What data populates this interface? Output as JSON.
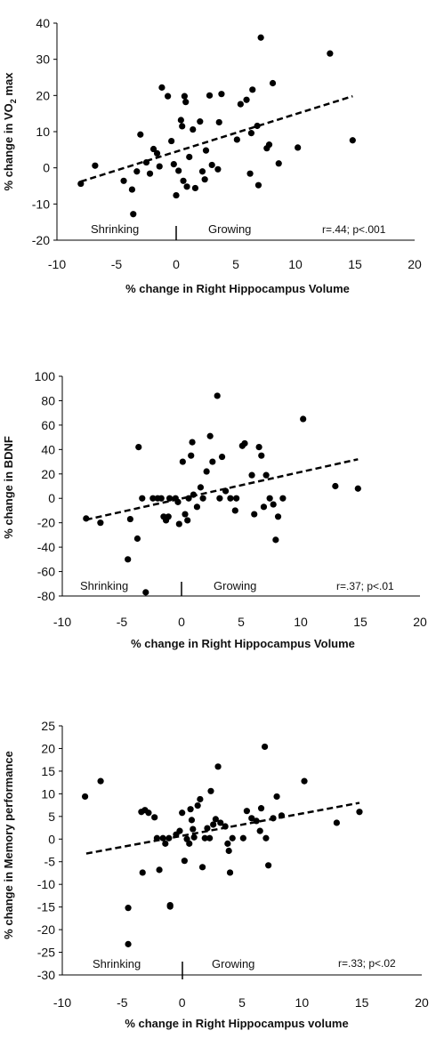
{
  "chart_data": [
    {
      "type": "scatter",
      "xlabel": "% change in Right Hippocampus Volume",
      "ylabel": "% change in VO2 max",
      "ylabel_main": "% change in VO",
      "ylabel_sub": "2",
      "ylabel_tail": " max",
      "xlim": [
        -10,
        20
      ],
      "ylim": [
        -20,
        40
      ],
      "xticks": [
        "-10",
        "-5",
        "0",
        "5",
        "10",
        "15",
        "20"
      ],
      "yticks": [
        "-20",
        "-10",
        "0",
        "10",
        "20",
        "30",
        "40"
      ],
      "annotations": {
        "left": "Shrinking",
        "right": "Growing",
        "stats": "r=.44; p<.001"
      },
      "trendline": {
        "style": "dashed",
        "x": [
          -8,
          14.8
        ],
        "y": [
          -3.8,
          19.8
        ]
      },
      "points": [
        [
          -8.0,
          -4.4
        ],
        [
          -6.8,
          0.6
        ],
        [
          -4.4,
          -3.6
        ],
        [
          -3.7,
          -6.0
        ],
        [
          -3.6,
          -12.8
        ],
        [
          -3.3,
          -1.0
        ],
        [
          -3.0,
          9.2
        ],
        [
          -2.5,
          1.5
        ],
        [
          -2.2,
          -1.6
        ],
        [
          -1.9,
          5.2
        ],
        [
          -1.6,
          4.0
        ],
        [
          -1.4,
          0.4
        ],
        [
          -1.2,
          22.2
        ],
        [
          -0.7,
          19.8
        ],
        [
          -0.4,
          7.4
        ],
        [
          -0.2,
          1.0
        ],
        [
          0.0,
          -7.6
        ],
        [
          0.2,
          -0.8
        ],
        [
          0.4,
          13.2
        ],
        [
          0.5,
          11.5
        ],
        [
          0.6,
          -3.6
        ],
        [
          0.7,
          19.8
        ],
        [
          0.8,
          18.2
        ],
        [
          0.9,
          -5.2
        ],
        [
          1.1,
          3.0
        ],
        [
          1.4,
          10.6
        ],
        [
          1.6,
          -5.6
        ],
        [
          2.0,
          12.8
        ],
        [
          2.2,
          -1.0
        ],
        [
          2.4,
          -3.2
        ],
        [
          2.5,
          4.8
        ],
        [
          2.8,
          20.0
        ],
        [
          3.0,
          0.8
        ],
        [
          3.5,
          -0.4
        ],
        [
          3.6,
          12.6
        ],
        [
          3.8,
          20.4
        ],
        [
          5.1,
          7.8
        ],
        [
          5.4,
          17.6
        ],
        [
          5.9,
          18.8
        ],
        [
          6.2,
          -1.6
        ],
        [
          6.3,
          9.6
        ],
        [
          6.4,
          21.6
        ],
        [
          6.8,
          11.6
        ],
        [
          6.9,
          -4.8
        ],
        [
          7.1,
          36.0
        ],
        [
          7.6,
          5.4
        ],
        [
          7.8,
          6.4
        ],
        [
          8.1,
          23.4
        ],
        [
          8.6,
          1.2
        ],
        [
          10.2,
          5.6
        ],
        [
          12.9,
          31.6
        ],
        [
          14.8,
          7.6
        ]
      ]
    },
    {
      "type": "scatter",
      "xlabel": "% change in Right Hippocampus Volume",
      "ylabel": "% change in BDNF",
      "xlim": [
        -10,
        20
      ],
      "ylim": [
        -80,
        100
      ],
      "xticks": [
        "-10",
        "-5",
        "0",
        "5",
        "10",
        "15",
        "20"
      ],
      "yticks": [
        "-80",
        "-60",
        "-40",
        "-20",
        "0",
        "20",
        "40",
        "60",
        "80",
        "100"
      ],
      "annotations": {
        "left": "Shrinking",
        "right": "Growing",
        "stats": "r=.37; p<.01"
      },
      "trendline": {
        "style": "dashed",
        "x": [
          -8,
          14.8
        ],
        "y": [
          -17.5,
          32.0
        ]
      },
      "points": [
        [
          -8.0,
          -16.5
        ],
        [
          -6.8,
          -20.0
        ],
        [
          -4.5,
          -50.0
        ],
        [
          -4.3,
          -17.0
        ],
        [
          -3.7,
          -33.0
        ],
        [
          -3.6,
          42.0
        ],
        [
          -3.3,
          0.0
        ],
        [
          -3.0,
          -77.0
        ],
        [
          -2.4,
          0.0
        ],
        [
          -2.0,
          0.0
        ],
        [
          -1.7,
          0.0
        ],
        [
          -1.5,
          -15.0
        ],
        [
          -1.3,
          -18.0
        ],
        [
          -1.1,
          -15.0
        ],
        [
          -1.0,
          0.0
        ],
        [
          -0.5,
          0.0
        ],
        [
          -0.3,
          -3.0
        ],
        [
          -0.2,
          -21.0
        ],
        [
          0.1,
          30.0
        ],
        [
          0.3,
          -13.0
        ],
        [
          0.5,
          -18.0
        ],
        [
          0.6,
          0.0
        ],
        [
          0.8,
          35.0
        ],
        [
          0.9,
          46.0
        ],
        [
          1.0,
          3.0
        ],
        [
          1.3,
          -7.0
        ],
        [
          1.6,
          9.0
        ],
        [
          1.8,
          0.0
        ],
        [
          2.1,
          22.0
        ],
        [
          2.4,
          51.0
        ],
        [
          2.6,
          30.0
        ],
        [
          3.0,
          84.0
        ],
        [
          3.2,
          0.0
        ],
        [
          3.4,
          34.0
        ],
        [
          3.7,
          6.0
        ],
        [
          4.1,
          0.0
        ],
        [
          4.5,
          -10.0
        ],
        [
          4.6,
          0.0
        ],
        [
          5.1,
          43.0
        ],
        [
          5.3,
          45.0
        ],
        [
          5.9,
          19.0
        ],
        [
          6.1,
          -13.0
        ],
        [
          6.5,
          42.0
        ],
        [
          6.7,
          35.0
        ],
        [
          6.9,
          -7.0
        ],
        [
          7.1,
          19.0
        ],
        [
          7.4,
          0.0
        ],
        [
          7.7,
          -5.0
        ],
        [
          7.9,
          -34.0
        ],
        [
          8.1,
          -15.0
        ],
        [
          8.5,
          0.0
        ],
        [
          10.2,
          65.0
        ],
        [
          12.9,
          10.0
        ],
        [
          14.8,
          8.0
        ]
      ]
    },
    {
      "type": "scatter",
      "xlabel": "% change in Right Hippocampus volume",
      "ylabel": "% change in Memory performance",
      "xlim": [
        -10,
        20
      ],
      "ylim": [
        -30,
        25
      ],
      "xticks": [
        "-10",
        "-5",
        "0",
        "5",
        "10",
        "15",
        "20"
      ],
      "yticks": [
        "-30",
        "-25",
        "-20",
        "-15",
        "-10",
        "-5",
        "0",
        "5",
        "10",
        "15",
        "20",
        "25"
      ],
      "annotations": {
        "left": "Shrinking",
        "right": "Growing",
        "stats": "r=.33; p<.02"
      },
      "trendline": {
        "style": "dashed",
        "x": [
          -8,
          14.8
        ],
        "y": [
          -3.2,
          8.0
        ]
      },
      "points": [
        [
          -8.1,
          9.4
        ],
        [
          -6.8,
          12.8
        ],
        [
          -4.5,
          -15.2
        ],
        [
          -4.5,
          -23.2
        ],
        [
          -3.4,
          6.0
        ],
        [
          -3.3,
          -7.4
        ],
        [
          -3.1,
          6.4
        ],
        [
          -2.8,
          5.8
        ],
        [
          -2.3,
          4.8
        ],
        [
          -2.1,
          0.2
        ],
        [
          -1.9,
          -6.8
        ],
        [
          -1.6,
          0.2
        ],
        [
          -1.4,
          -1.0
        ],
        [
          -1.1,
          0.2
        ],
        [
          -1.0,
          -14.6
        ],
        [
          -1.0,
          -14.9
        ],
        [
          -0.5,
          1.0
        ],
        [
          -0.2,
          1.8
        ],
        [
          0.0,
          5.8
        ],
        [
          0.2,
          -4.8
        ],
        [
          0.4,
          0.0
        ],
        [
          0.6,
          -1.0
        ],
        [
          0.7,
          6.6
        ],
        [
          0.8,
          4.2
        ],
        [
          0.9,
          2.2
        ],
        [
          1.0,
          0.4
        ],
        [
          1.3,
          7.4
        ],
        [
          1.5,
          8.8
        ],
        [
          1.7,
          -6.2
        ],
        [
          1.9,
          0.2
        ],
        [
          2.1,
          2.4
        ],
        [
          2.3,
          0.2
        ],
        [
          2.4,
          10.6
        ],
        [
          2.6,
          3.2
        ],
        [
          2.8,
          4.4
        ],
        [
          3.0,
          16.0
        ],
        [
          3.2,
          3.6
        ],
        [
          3.6,
          2.8
        ],
        [
          3.8,
          -1.0
        ],
        [
          3.9,
          -2.6
        ],
        [
          4.0,
          -7.4
        ],
        [
          4.2,
          0.2
        ],
        [
          5.1,
          0.2
        ],
        [
          5.4,
          6.2
        ],
        [
          5.8,
          4.6
        ],
        [
          6.2,
          4.0
        ],
        [
          6.5,
          1.8
        ],
        [
          6.6,
          6.8
        ],
        [
          6.9,
          20.4
        ],
        [
          7.0,
          0.2
        ],
        [
          7.2,
          -5.8
        ],
        [
          7.6,
          4.6
        ],
        [
          7.9,
          9.4
        ],
        [
          8.3,
          5.2
        ],
        [
          10.2,
          12.8
        ],
        [
          12.9,
          3.6
        ],
        [
          14.8,
          6.0
        ]
      ]
    }
  ]
}
